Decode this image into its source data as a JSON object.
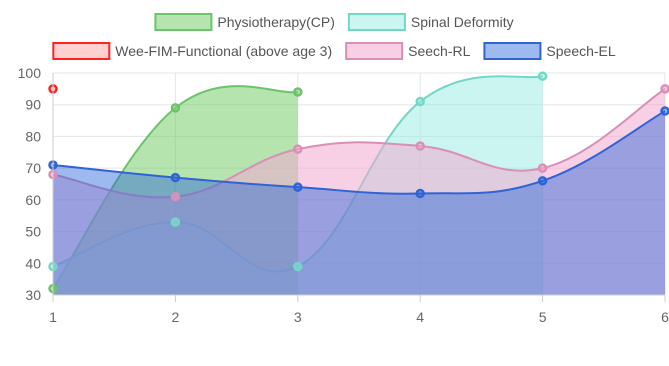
{
  "chart_data": {
    "type": "area",
    "x": [
      1,
      2,
      3,
      4,
      5,
      6
    ],
    "xlim": [
      1,
      6
    ],
    "ylim": [
      30,
      100
    ],
    "y_ticks": [
      30,
      40,
      50,
      60,
      70,
      80,
      90,
      100
    ],
    "grid": true,
    "legend_position": "top",
    "series": [
      {
        "name": "Physiotherapy(CP)",
        "values": [
          32,
          89,
          94,
          null,
          null,
          null
        ],
        "fill": "rgba(120,205,110,0.55)",
        "stroke": "#6cc36a"
      },
      {
        "name": "Spinal Deformity",
        "values": [
          39,
          53,
          39,
          91,
          99,
          null
        ],
        "fill": "rgba(150,235,225,0.50)",
        "stroke": "#72d8c4"
      },
      {
        "name": "Wee-FIM-Functional (above age 3)",
        "values": [
          95,
          null,
          null,
          null,
          null,
          null
        ],
        "fill": "rgba(255,170,170,0.55)",
        "stroke": "#ff2222"
      },
      {
        "name": "Seech-RL",
        "values": [
          68,
          61,
          76,
          77,
          70,
          95
        ],
        "fill": "rgba(240,170,210,0.55)",
        "stroke": "#d98fb6"
      },
      {
        "name": "Speech-EL",
        "values": [
          71,
          67,
          64,
          62,
          66,
          88
        ],
        "fill": "rgba(40,100,215,0.45)",
        "stroke": "#2f63d6"
      }
    ]
  }
}
